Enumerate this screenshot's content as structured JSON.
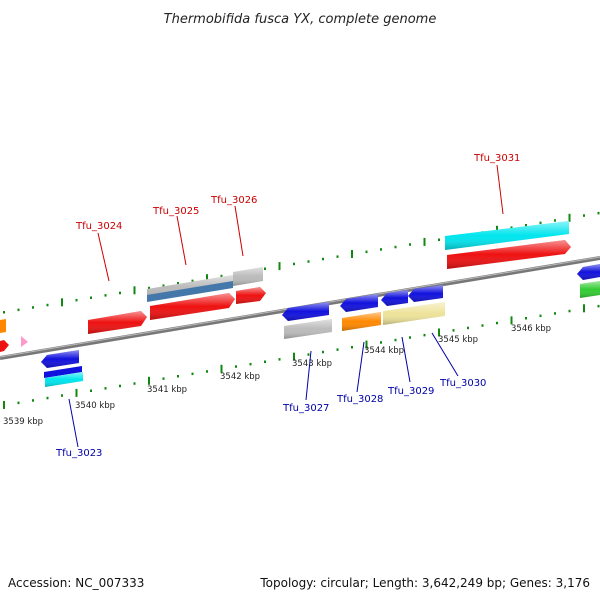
{
  "title": "Thermobifida fusca YX, complete genome",
  "footer": {
    "accession": "Accession: NC_007333",
    "summary": "Topology: circular; Length: 3,642,249 bp; Genes: 3,176"
  },
  "kbp_labels": [
    "3539 kbp",
    "3540 kbp",
    "3541 kbp",
    "3542 kbp",
    "3543 kbp",
    "3544 kbp",
    "3545 kbp",
    "3546 kbp"
  ],
  "genes_top": [
    "Tfu_3024",
    "Tfu_3025",
    "Tfu_3026",
    "Tfu_3031"
  ],
  "genes_bottom": [
    "Tfu_3023",
    "Tfu_3027",
    "Tfu_3028",
    "Tfu_3029",
    "Tfu_3030"
  ],
  "colors": {
    "red": "#ee1111",
    "blue": "#1111dd",
    "cyan": "#00e5ee",
    "orange": "#ff8800",
    "grey": "#bbbbbb",
    "steelblue": "#4477aa",
    "khaki": "#eee39a",
    "green": "#33cc33",
    "pink": "#ff99cc",
    "backbone": "#888888",
    "ticks": "#118811"
  }
}
